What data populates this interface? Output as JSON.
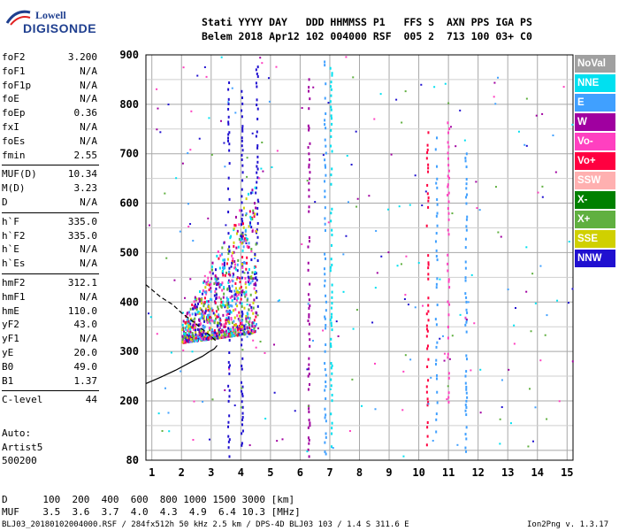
{
  "logo": {
    "line1": "Lowell",
    "line2": "DIGISONDE"
  },
  "header": {
    "line1": "Stati YYYY DAY   DDD HHMMSS P1   FFS S  AXN PPS IGA PS",
    "line2": "Belem 2018 Apr12 102 004000 RSF  005 2  713 100 03+ C0"
  },
  "params": [
    {
      "name": "foF2",
      "value": "3.200"
    },
    {
      "name": "foF1",
      "value": "N/A"
    },
    {
      "name": "foF1p",
      "value": "N/A"
    },
    {
      "name": "foE",
      "value": "N/A"
    },
    {
      "name": "foEp",
      "value": "0.36"
    },
    {
      "name": "fxI",
      "value": "N/A"
    },
    {
      "name": "foEs",
      "value": "N/A"
    },
    {
      "name": "fmin",
      "value": "2.55"
    },
    {
      "name": "MUF(D)",
      "value": "10.34"
    },
    {
      "name": "M(D)",
      "value": "3.23"
    },
    {
      "name": "D",
      "value": "N/A"
    },
    {
      "name": "h`F",
      "value": "335.0"
    },
    {
      "name": "h`F2",
      "value": "335.0"
    },
    {
      "name": "h`E",
      "value": "N/A"
    },
    {
      "name": "h`Es",
      "value": "N/A"
    },
    {
      "name": "hmF2",
      "value": "312.1"
    },
    {
      "name": "hmF1",
      "value": "N/A"
    },
    {
      "name": "hmE",
      "value": "110.0"
    },
    {
      "name": "yF2",
      "value": "43.0"
    },
    {
      "name": "yF1",
      "value": "N/A"
    },
    {
      "name": "yE",
      "value": "20.0"
    },
    {
      "name": "B0",
      "value": "49.0"
    },
    {
      "name": "B1",
      "value": "1.37"
    },
    {
      "name": "C-level",
      "value": "44"
    }
  ],
  "auto": {
    "l1": "Auto:",
    "l2": "Artist5",
    "l3": "500200"
  },
  "legend": [
    {
      "label": "NoVal",
      "color": "#a0a0a0"
    },
    {
      "label": "NNE",
      "color": "#00e0f0"
    },
    {
      "label": "E",
      "color": "#40a0ff"
    },
    {
      "label": "W",
      "color": "#a000a0"
    },
    {
      "label": "Vo-",
      "color": "#ff40c0"
    },
    {
      "label": "Vo+",
      "color": "#ff0040"
    },
    {
      "label": "SSW",
      "color": "#ffb0b0"
    },
    {
      "label": "X-",
      "color": "#008000"
    },
    {
      "label": "X+",
      "color": "#60b040"
    },
    {
      "label": "SSE",
      "color": "#d0d000"
    },
    {
      "label": "NNW",
      "color": "#2010d0"
    }
  ],
  "footer": {
    "d_row": "D      100  200  400  600  800 1000 1500 3000 [km]",
    "muf_row": "MUF    3.5  3.6  3.7  4.0  4.3  4.9  6.4 10.3 [MHz]",
    "info": "BLJ03_20180102004000.RSF / 284fx512h 50 kHz 2.5 km / DPS-4D BLJ03 103 / 1.4 S 311.6 E",
    "version": "Ion2Png v. 1.3.17"
  },
  "chart_data": {
    "type": "scatter",
    "title": "",
    "xlabel": "",
    "ylabel": "",
    "xlim": [
      0.8,
      15.2
    ],
    "ylim": [
      80,
      900
    ],
    "x_ticks": [
      1,
      2,
      3,
      4,
      5,
      6,
      7,
      8,
      9,
      10,
      11,
      12,
      13,
      14,
      15
    ],
    "y_ticks": [
      80,
      200,
      300,
      400,
      500,
      600,
      700,
      800,
      900
    ],
    "grid": true,
    "legend_position": "right",
    "traces": [
      {
        "name": "profile_solid",
        "style": "solid",
        "x": [
          0.8,
          1.3,
          1.8,
          2.3,
          2.7,
          2.95,
          3.1,
          3.2
        ],
        "y": [
          235,
          248,
          262,
          278,
          290,
          300,
          305,
          312
        ]
      },
      {
        "name": "profile_dashed",
        "style": "dashed",
        "x": [
          0.8,
          1.3,
          1.7,
          2.0,
          2.4,
          2.8,
          3.1,
          3.2
        ],
        "y": [
          435,
          410,
          395,
          378,
          360,
          340,
          325,
          318
        ]
      }
    ],
    "echo_columns": [
      {
        "x": 6.3,
        "y": [
          90,
          880
        ],
        "color": "#a000a0"
      },
      {
        "x": 6.85,
        "y": [
          90,
          900
        ],
        "color": "#40a0ff"
      },
      {
        "x": 7.05,
        "y": [
          110,
          880
        ],
        "color": "#00e0f0"
      },
      {
        "x": 10.3,
        "y": [
          100,
          780
        ],
        "color": "#ff0040"
      },
      {
        "x": 10.6,
        "y": [
          140,
          740
        ],
        "color": "#40a0ff"
      },
      {
        "x": 11.0,
        "y": [
          200,
          770
        ],
        "color": "#ff40c0"
      },
      {
        "x": 11.6,
        "y": [
          100,
          720
        ],
        "color": "#40a0ff"
      },
      {
        "x": 3.6,
        "y": [
          90,
          860
        ],
        "color": "#2010d0"
      },
      {
        "x": 4.05,
        "y": [
          100,
          850
        ],
        "color": "#2010d0"
      },
      {
        "x": 4.55,
        "y": [
          380,
          880
        ],
        "color": "#2010d0"
      }
    ],
    "echo_cluster": {
      "x": [
        2.0,
        4.5
      ],
      "y": [
        320,
        660
      ],
      "colors": [
        "#ff0040",
        "#40a0ff",
        "#ff40c0",
        "#2010d0",
        "#a000a0",
        "#60b040",
        "#d0d000",
        "#00e0f0"
      ]
    }
  }
}
